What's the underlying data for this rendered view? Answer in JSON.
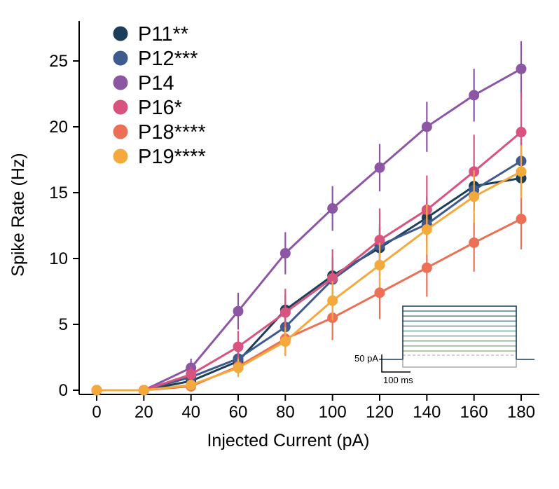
{
  "chart_data": {
    "type": "line",
    "title": "",
    "xlabel": "Injected Current (pA)",
    "ylabel": "Spike Rate (Hz)",
    "x": [
      0,
      20,
      40,
      60,
      80,
      100,
      120,
      140,
      160,
      180
    ],
    "xticks": [
      0,
      20,
      40,
      60,
      80,
      100,
      120,
      140,
      160,
      180
    ],
    "yticks": [
      0,
      5,
      10,
      15,
      20,
      25
    ],
    "xlim": [
      -12,
      192
    ],
    "ylim": [
      0,
      27.5
    ],
    "grid": false,
    "legend_position": "top-left",
    "series": [
      {
        "name": "P11**",
        "color": "#1d3e59",
        "values": [
          0,
          0,
          0.7,
          2.2,
          6.1,
          8.7,
          10.8,
          13.1,
          15.5,
          16.1
        ],
        "errors": [
          0,
          0,
          0.4,
          0.8,
          1.2,
          1.4,
          1.5,
          1.6,
          1.5,
          1.4
        ]
      },
      {
        "name": "P12***",
        "color": "#3f5a8f",
        "values": [
          0,
          0,
          1.0,
          2.4,
          4.8,
          8.4,
          11.0,
          12.6,
          15.2,
          17.4
        ],
        "errors": [
          0,
          0,
          0.5,
          0.9,
          1.2,
          1.5,
          1.6,
          1.7,
          1.6,
          1.7
        ]
      },
      {
        "name": "P14",
        "color": "#8c56a4",
        "values": [
          0,
          0,
          1.7,
          6.0,
          10.4,
          13.8,
          16.9,
          20.0,
          22.4,
          24.4
        ],
        "errors": [
          0,
          0,
          0.7,
          1.4,
          1.6,
          1.7,
          1.8,
          1.9,
          2.0,
          2.1
        ]
      },
      {
        "name": "P16*",
        "color": "#d9537f",
        "values": [
          0,
          0,
          1.2,
          3.3,
          5.9,
          8.5,
          11.4,
          13.7,
          16.6,
          19.6
        ],
        "errors": [
          0,
          0,
          0.6,
          1.2,
          1.8,
          2.2,
          2.4,
          2.6,
          2.8,
          3.0
        ]
      },
      {
        "name": "P18****",
        "color": "#ec6f56",
        "values": [
          0,
          0,
          0.3,
          1.8,
          3.9,
          5.5,
          7.4,
          9.3,
          11.2,
          13.0
        ],
        "errors": [
          0,
          0,
          0.2,
          0.7,
          1.3,
          1.7,
          2.0,
          2.2,
          2.2,
          2.3
        ]
      },
      {
        "name": "P19****",
        "color": "#f3a93c",
        "values": [
          0,
          0,
          0.4,
          1.7,
          3.7,
          6.8,
          9.5,
          12.2,
          14.7,
          16.6
        ],
        "errors": [
          0,
          0,
          0.3,
          0.7,
          1.1,
          1.5,
          1.7,
          1.9,
          2.0,
          2.0
        ]
      }
    ],
    "inset": {
      "description": "current-step-protocol",
      "scalebar_pa": "50 pA",
      "scalebar_ms": "100 ms",
      "outline_color": "#1f3c55",
      "negative_trace_color": "#9a9a9a",
      "dashed_line_color": "#b4b4b4",
      "step_colors": [
        "#34617f",
        "#3d6a80",
        "#467380",
        "#507c80",
        "#59857e",
        "#638e7b",
        "#6d9777",
        "#78a072",
        "#82a96c"
      ]
    }
  }
}
